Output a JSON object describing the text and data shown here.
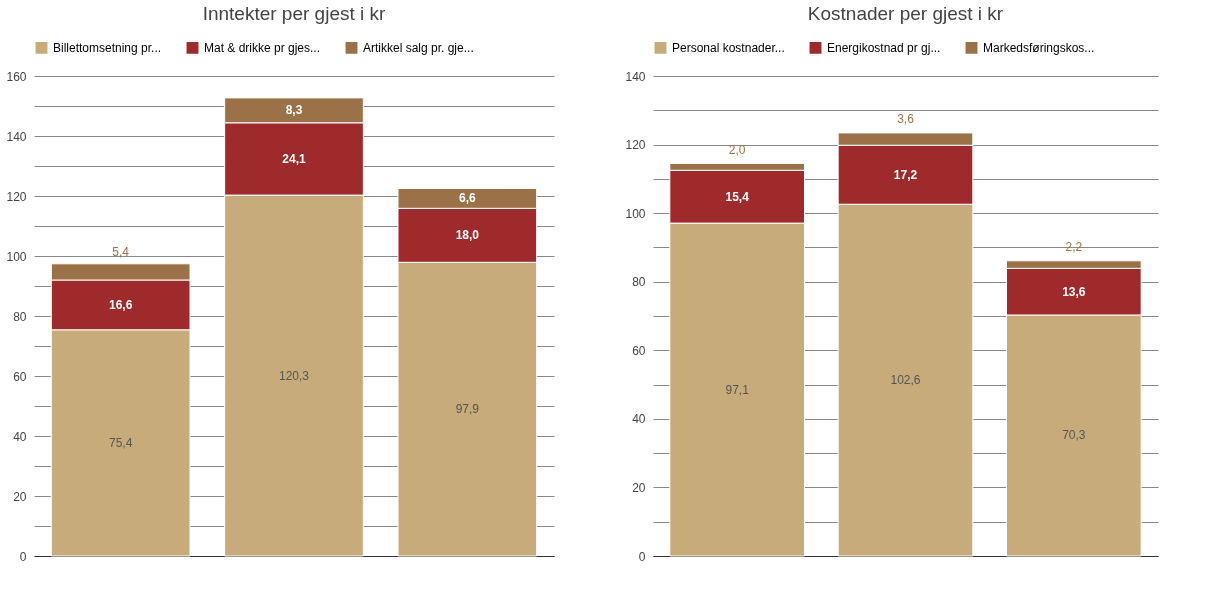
{
  "chart_data": [
    {
      "type": "bar",
      "title": "Inntekter per gjest i kr",
      "stacked": true,
      "categories": [
        null,
        null,
        null
      ],
      "legend": "top",
      "grid": "y",
      "tick_labels": "y",
      "ylim": [
        0,
        160
      ],
      "yticks": [
        0,
        {
          "value": 10,
          "label": null
        },
        20,
        {
          "value": 30,
          "label": null
        },
        40,
        {
          "value": 50,
          "label": null
        },
        60,
        {
          "value": 70,
          "label": null
        },
        80,
        {
          "value": 90,
          "label": null
        },
        100,
        {
          "value": 110,
          "label": null
        },
        120,
        {
          "value": 130,
          "label": null
        },
        140,
        {
          "value": 150,
          "label": null
        },
        160
      ],
      "series": [
        {
          "name": "Billettomsetning pr...",
          "color": "#c8ab7a",
          "values": [
            75.4,
            120.3,
            97.9
          ],
          "value_labels": [
            "75,4",
            "120,3",
            "97,9"
          ]
        },
        {
          "name": "Mat & drikke pr gjes...",
          "color": "#9e2a2b",
          "values": [
            16.6,
            24.1,
            18.0
          ],
          "value_labels": [
            "16,6",
            "24,1",
            "18,0"
          ]
        },
        {
          "name": "Artikkel salg pr. gje...",
          "color": "#9b7148",
          "values": [
            5.4,
            8.3,
            6.6
          ],
          "value_labels": [
            "5,4",
            "8,3",
            "6,6"
          ]
        }
      ]
    },
    {
      "type": "bar",
      "title": "Kostnader per gjest i kr",
      "stacked": true,
      "categories": [
        null,
        null,
        null
      ],
      "legend": "top",
      "grid": "y",
      "tick_labels": "y",
      "ylim": [
        0,
        140
      ],
      "yticks": [
        0,
        {
          "value": 10,
          "label": null
        },
        20,
        {
          "value": 30,
          "label": null
        },
        40,
        {
          "value": 50,
          "label": null
        },
        60,
        {
          "value": 70,
          "label": null
        },
        80,
        {
          "value": 90,
          "label": null
        },
        100,
        {
          "value": 110,
          "label": null
        },
        120,
        {
          "value": 130,
          "label": null
        },
        140
      ],
      "series": [
        {
          "name": "Personal kostnader...",
          "color": "#c8ab7a",
          "values": [
            97.1,
            102.6,
            70.3
          ],
          "value_labels": [
            "97,1",
            "102,6",
            "70,3"
          ]
        },
        {
          "name": "Energikostnad pr gj...",
          "color": "#9e2a2b",
          "values": [
            15.4,
            17.2,
            13.6
          ],
          "value_labels": [
            "15,4",
            "17,2",
            "13,6"
          ]
        },
        {
          "name": "Markedsføringskos...",
          "color": "#9b7148",
          "values": [
            2.0,
            3.6,
            2.2
          ],
          "value_labels": [
            "2,0",
            "3,6",
            "2,2"
          ]
        }
      ]
    }
  ]
}
